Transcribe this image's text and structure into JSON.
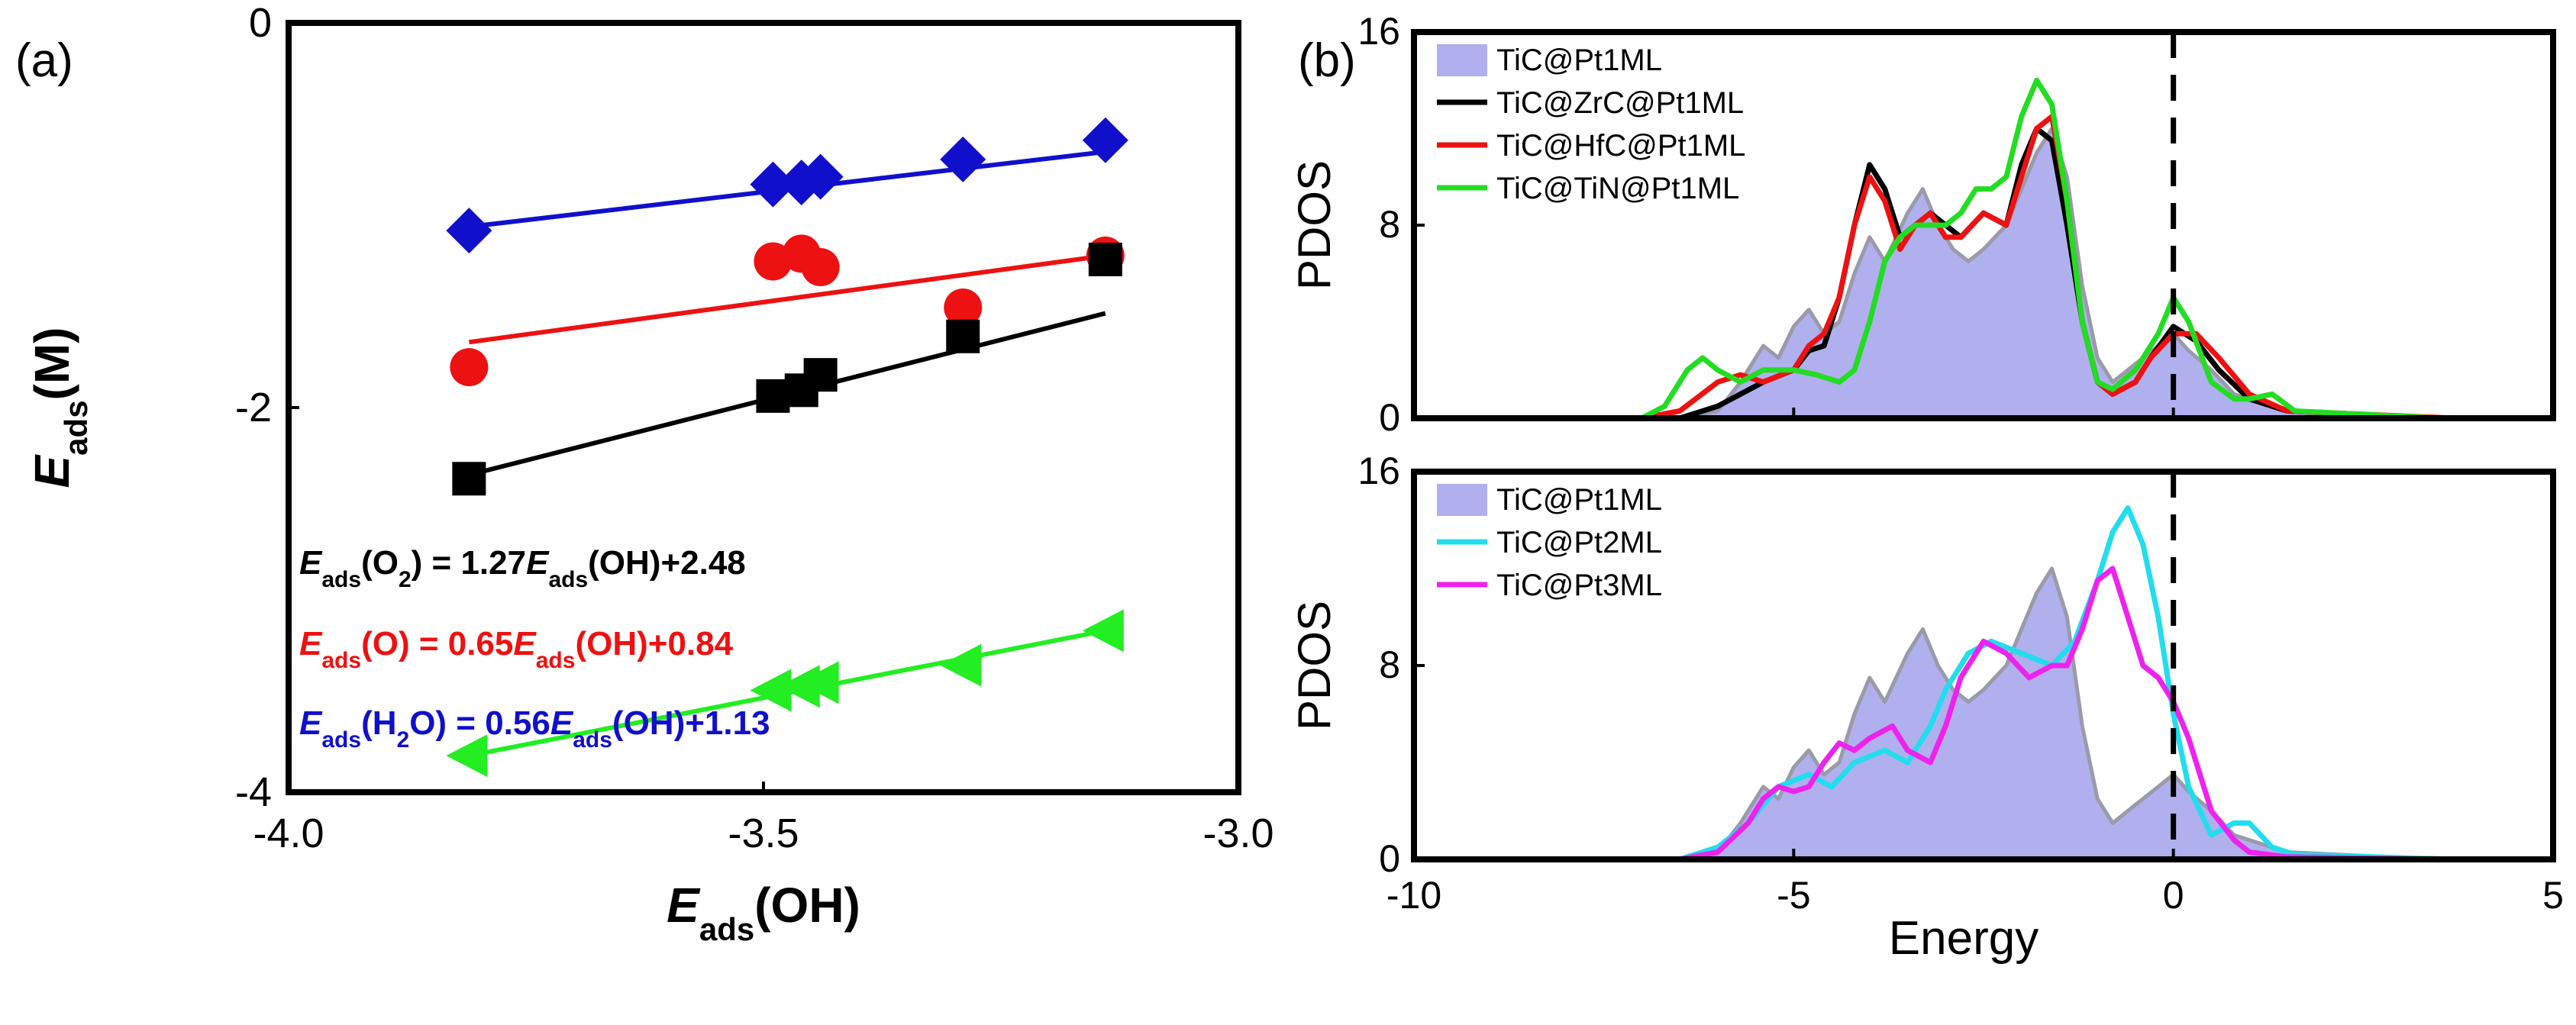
{
  "panel_a": {
    "label": "(a)",
    "chart_data": {
      "type": "scatter",
      "xlim": [
        -4.0,
        -3.0
      ],
      "ylim": [
        -4,
        0
      ],
      "xticks": [
        "-4.0",
        "-3.5",
        "-3.0"
      ],
      "yticks": [
        "0",
        "-2",
        "-4"
      ],
      "xlabel_main": "E",
      "xlabel_sub": "ads",
      "xlabel_tail": "(OH)",
      "ylabel_main": "E",
      "ylabel_sub": "ads",
      "ylabel_tail": "(M)",
      "series": [
        {
          "color": "#1010cc",
          "marker": "diamond",
          "points": [
            [
              -3.81,
              -1.08
            ],
            [
              -3.49,
              -0.84
            ],
            [
              -3.46,
              -0.83
            ],
            [
              -3.44,
              -0.8
            ],
            [
              -3.29,
              -0.71
            ],
            [
              -3.14,
              -0.61
            ]
          ],
          "fit": [
            [
              -3.81,
              -1.06
            ],
            [
              -3.14,
              -0.67
            ]
          ]
        },
        {
          "color": "#ee1111",
          "marker": "circle",
          "points": [
            [
              -3.81,
              -1.79
            ],
            [
              -3.49,
              -1.24
            ],
            [
              -3.46,
              -1.2
            ],
            [
              -3.44,
              -1.27
            ],
            [
              -3.29,
              -1.48
            ],
            [
              -3.14,
              -1.21
            ]
          ],
          "fit": [
            [
              -3.81,
              -1.66
            ],
            [
              -3.14,
              -1.21
            ]
          ]
        },
        {
          "color": "#000000",
          "marker": "square",
          "points": [
            [
              -3.81,
              -2.37
            ],
            [
              -3.49,
              -1.94
            ],
            [
              -3.46,
              -1.91
            ],
            [
              -3.44,
              -1.83
            ],
            [
              -3.29,
              -1.63
            ],
            [
              -3.14,
              -1.23
            ]
          ],
          "fit": [
            [
              -3.81,
              -2.35
            ],
            [
              -3.14,
              -1.51
            ]
          ]
        },
        {
          "color": "#22ee22",
          "marker": "triangle-left",
          "points": [
            [
              -3.81,
              -3.81
            ],
            [
              -3.49,
              -3.47
            ],
            [
              -3.46,
              -3.45
            ],
            [
              -3.44,
              -3.43
            ],
            [
              -3.29,
              -3.34
            ],
            [
              -3.14,
              -3.16
            ]
          ],
          "fit": [
            [
              -3.81,
              -3.81
            ],
            [
              -3.14,
              -3.16
            ]
          ]
        }
      ],
      "equations": [
        {
          "color": "#000000",
          "text": "Eads(O2) = 1.27Eads(OH)+2.48"
        },
        {
          "color": "#ee1111",
          "text": "Eads(O) = 0.65Eads(OH)+0.84"
        },
        {
          "color": "#1010cc",
          "text": "Eads(H2O) = 0.56Eads(OH)+1.13"
        }
      ]
    }
  },
  "panel_b": {
    "label": "(b)",
    "chart_data": [
      {
        "type": "line",
        "ylabel": "PDOS",
        "xlim": [
          -10,
          5
        ],
        "ylim": [
          0,
          16
        ],
        "yticks": [
          "0",
          "8",
          "16"
        ],
        "fermi_x": 0,
        "series": [
          {
            "name": "TiC@Pt1ML",
            "style": "filled",
            "color": "#b0b0ee",
            "x": [
              -10,
              -6.5,
              -6.0,
              -5.7,
              -5.4,
              -5.2,
              -5.0,
              -4.8,
              -4.6,
              -4.4,
              -4.2,
              -4.0,
              -3.8,
              -3.5,
              -3.3,
              -3.1,
              -2.9,
              -2.7,
              -2.5,
              -2.2,
              -2.0,
              -1.8,
              -1.6,
              -1.4,
              -1.2,
              -1.0,
              -0.8,
              -0.6,
              -0.4,
              -0.2,
              0,
              0.2,
              0.5,
              0.8,
              1.0,
              1.5,
              3.5
            ],
            "y": [
              0,
              0,
              0.3,
              1.5,
              3.0,
              2.5,
              3.8,
              4.5,
              3.5,
              4.0,
              6.0,
              7.5,
              6.5,
              8.5,
              9.5,
              8.0,
              7.0,
              6.5,
              7.0,
              8.0,
              9.5,
              11.0,
              12.0,
              10.0,
              5.5,
              2.5,
              1.5,
              2.0,
              2.5,
              3.0,
              3.5,
              2.8,
              2.0,
              1.0,
              0.8,
              0.3,
              0
            ]
          },
          {
            "name": "TiC@ZrC@Pt1ML",
            "style": "line",
            "color": "#000000",
            "x": [
              -10,
              -6.5,
              -6.0,
              -5.7,
              -5.4,
              -5.0,
              -4.8,
              -4.6,
              -4.4,
              -4.2,
              -4.0,
              -3.8,
              -3.6,
              -3.4,
              -3.2,
              -3.0,
              -2.8,
              -2.5,
              -2.2,
              -2.0,
              -1.8,
              -1.6,
              -1.4,
              -1.2,
              -1.0,
              -0.8,
              -0.5,
              -0.3,
              0,
              0.3,
              0.6,
              1.0,
              1.5,
              3.5
            ],
            "y": [
              0,
              0,
              0.5,
              1.0,
              1.5,
              2.0,
              2.8,
              3.0,
              5.0,
              8.0,
              10.5,
              9.5,
              7.5,
              8.0,
              8.5,
              8.0,
              7.5,
              8.5,
              8.0,
              10.5,
              12.0,
              11.5,
              8.0,
              4.0,
              1.5,
              1.0,
              1.5,
              2.5,
              3.8,
              3.2,
              2.0,
              0.8,
              0.3,
              0
            ]
          },
          {
            "name": "TiC@HfC@Pt1ML",
            "style": "line",
            "color": "#ee1111",
            "x": [
              -10,
              -7.0,
              -6.5,
              -6.0,
              -5.7,
              -5.4,
              -5.0,
              -4.8,
              -4.6,
              -4.4,
              -4.2,
              -4.0,
              -3.8,
              -3.6,
              -3.4,
              -3.2,
              -3.0,
              -2.8,
              -2.5,
              -2.2,
              -2.0,
              -1.8,
              -1.6,
              -1.4,
              -1.2,
              -1.0,
              -0.8,
              -0.5,
              -0.3,
              0,
              0.3,
              0.6,
              1.0,
              1.5,
              3.7
            ],
            "y": [
              0,
              0,
              0.3,
              1.5,
              1.8,
              1.5,
              2.0,
              3.0,
              3.5,
              5.0,
              8.0,
              10.0,
              9.0,
              7.0,
              8.0,
              8.5,
              7.5,
              7.5,
              8.5,
              8.0,
              10.0,
              12.0,
              12.5,
              9.0,
              4.0,
              1.5,
              1.0,
              1.5,
              2.5,
              3.5,
              3.5,
              2.5,
              1.0,
              0.3,
              0
            ]
          },
          {
            "name": "TiC@TiN@Pt1ML",
            "style": "line",
            "color": "#22dd22",
            "x": [
              -10,
              -7.0,
              -6.7,
              -6.4,
              -6.2,
              -6.0,
              -5.7,
              -5.4,
              -5.0,
              -4.7,
              -4.4,
              -4.2,
              -4.0,
              -3.8,
              -3.6,
              -3.4,
              -3.2,
              -3.0,
              -2.8,
              -2.6,
              -2.4,
              -2.2,
              -2.0,
              -1.8,
              -1.6,
              -1.4,
              -1.2,
              -1.0,
              -0.8,
              -0.5,
              -0.2,
              0,
              0.2,
              0.5,
              0.8,
              1.0,
              1.3,
              1.6,
              3.5
            ],
            "y": [
              0,
              0,
              0.5,
              2.0,
              2.5,
              2.0,
              1.5,
              2.0,
              2.0,
              1.8,
              1.5,
              2.0,
              4.0,
              6.5,
              7.5,
              8.0,
              8.0,
              8.0,
              8.5,
              9.5,
              9.5,
              10.0,
              12.5,
              14.0,
              13.0,
              9.0,
              4.0,
              1.5,
              1.2,
              2.0,
              3.5,
              5.0,
              4.0,
              1.5,
              0.8,
              0.8,
              1.0,
              0.3,
              0
            ]
          }
        ]
      },
      {
        "type": "line",
        "ylabel": "PDOS",
        "xlabel": "Energy",
        "xlim": [
          -10,
          5
        ],
        "ylim": [
          0,
          16
        ],
        "xticks": [
          "-10",
          "-5",
          "0",
          "5"
        ],
        "yticks": [
          "0",
          "8",
          "16"
        ],
        "fermi_x": 0,
        "series": [
          {
            "name": "TiC@Pt1ML",
            "style": "filled",
            "color": "#b0b0ee",
            "x": [
              -10,
              -6.5,
              -6.0,
              -5.7,
              -5.4,
              -5.2,
              -5.0,
              -4.8,
              -4.6,
              -4.4,
              -4.2,
              -4.0,
              -3.8,
              -3.5,
              -3.3,
              -3.1,
              -2.9,
              -2.7,
              -2.5,
              -2.2,
              -2.0,
              -1.8,
              -1.6,
              -1.4,
              -1.2,
              -1.0,
              -0.8,
              -0.6,
              -0.4,
              -0.2,
              0,
              0.2,
              0.5,
              0.8,
              1.0,
              1.5,
              3.5
            ],
            "y": [
              0,
              0,
              0.3,
              1.5,
              3.0,
              2.5,
              3.8,
              4.5,
              3.5,
              4.0,
              6.0,
              7.5,
              6.5,
              8.5,
              9.5,
              8.0,
              7.0,
              6.5,
              7.0,
              8.0,
              9.5,
              11.0,
              12.0,
              10.0,
              5.5,
              2.5,
              1.5,
              2.0,
              2.5,
              3.0,
              3.5,
              2.8,
              2.0,
              1.0,
              0.8,
              0.3,
              0
            ]
          },
          {
            "name": "TiC@Pt2ML",
            "style": "line",
            "color": "#22ddee",
            "x": [
              -10,
              -6.5,
              -6.0,
              -5.6,
              -5.2,
              -4.8,
              -4.5,
              -4.2,
              -3.8,
              -3.5,
              -3.2,
              -3.0,
              -2.7,
              -2.4,
              -2.0,
              -1.6,
              -1.3,
              -1.0,
              -0.8,
              -0.6,
              -0.4,
              -0.2,
              0,
              0.2,
              0.5,
              0.8,
              1.0,
              1.3,
              1.6,
              3.7
            ],
            "y": [
              0,
              0,
              0.5,
              1.5,
              3.0,
              3.5,
              3.0,
              4.0,
              4.5,
              4.0,
              5.5,
              7.0,
              8.5,
              9.0,
              8.5,
              8.0,
              9.0,
              11.5,
              13.5,
              14.5,
              13.0,
              10.0,
              6.0,
              3.0,
              1.0,
              1.5,
              1.5,
              0.5,
              0.2,
              0
            ]
          },
          {
            "name": "TiC@Pt3ML",
            "style": "line",
            "color": "#ee22ee",
            "x": [
              -10,
              -6.5,
              -6.0,
              -5.6,
              -5.4,
              -5.2,
              -5.0,
              -4.8,
              -4.6,
              -4.4,
              -4.2,
              -4.0,
              -3.7,
              -3.5,
              -3.2,
              -3.0,
              -2.8,
              -2.5,
              -2.2,
              -1.9,
              -1.6,
              -1.4,
              -1.2,
              -1.0,
              -0.8,
              -0.6,
              -0.4,
              -0.2,
              0,
              0.2,
              0.5,
              0.8,
              1.0,
              1.5,
              3.5
            ],
            "y": [
              0,
              0,
              0.3,
              1.5,
              2.5,
              3.0,
              2.8,
              3.0,
              4.0,
              4.8,
              4.5,
              5.0,
              5.5,
              4.5,
              4.0,
              5.5,
              7.5,
              9.0,
              8.5,
              7.5,
              8.0,
              8.0,
              9.5,
              11.5,
              12.0,
              10.0,
              8.0,
              7.5,
              6.5,
              5.0,
              2.0,
              0.8,
              0.3,
              0.1,
              0
            ]
          }
        ]
      }
    ]
  }
}
